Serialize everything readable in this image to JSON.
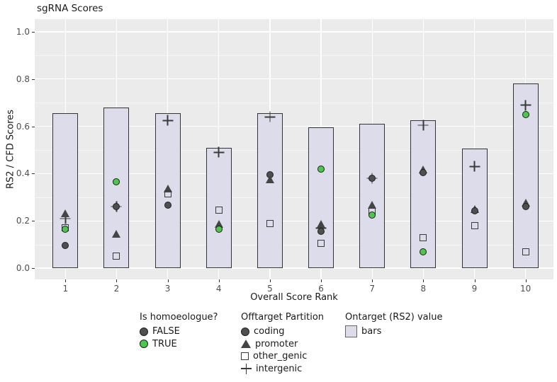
{
  "title": "sgRNA Scores",
  "colors": {
    "background": "#ffffff",
    "panel_background": "#ebebeb",
    "grid_major": "#ffffff",
    "bar_fill": "#dcdceb",
    "bar_border": "#333333",
    "false_color": "#4f4f4f",
    "true_color": "#4bc74b",
    "shape_outline": "#3a3a3a",
    "axis_text": "#4d4d4d"
  },
  "chart_data": {
    "type": "bar",
    "title": "sgRNA Scores",
    "xlabel": "Overall Score Rank",
    "ylabel": "RS2 / CFD Scores",
    "ylim": [
      0,
      1.05
    ],
    "grid": "on",
    "legend_position": "bottom",
    "yticks": [
      0.0,
      0.2,
      0.4,
      0.6,
      0.8,
      1.0
    ],
    "ytick_labels": [
      "0.0",
      "0.2",
      "0.4",
      "0.6",
      "0.8",
      "1.0"
    ],
    "y_minor": [
      0.1,
      0.3,
      0.5,
      0.7,
      0.9
    ],
    "categories": [
      "1",
      "2",
      "3",
      "4",
      "5",
      "6",
      "7",
      "8",
      "9",
      "10"
    ],
    "bars": {
      "name": "Ontarget (RS2) value",
      "label": "bars",
      "values": [
        0.655,
        0.68,
        0.655,
        0.51,
        0.655,
        0.595,
        0.61,
        0.625,
        0.505,
        0.78
      ]
    },
    "points": [
      {
        "rank": 1,
        "partition": "intergenic",
        "shape": "plus",
        "homoeologue": "FALSE",
        "value": 0.21
      },
      {
        "rank": 1,
        "partition": "promoter",
        "shape": "triangle",
        "homoeologue": "FALSE",
        "value": 0.23
      },
      {
        "rank": 1,
        "partition": "other_genic",
        "shape": "square",
        "homoeologue": "FALSE",
        "value": 0.17
      },
      {
        "rank": 1,
        "partition": "coding",
        "shape": "circle",
        "homoeologue": "TRUE",
        "value": 0.165
      },
      {
        "rank": 1,
        "partition": "coding",
        "shape": "circle",
        "homoeologue": "FALSE",
        "value": 0.095
      },
      {
        "rank": 2,
        "partition": "coding",
        "shape": "circle",
        "homoeologue": "TRUE",
        "value": 0.365
      },
      {
        "rank": 2,
        "partition": "intergenic",
        "shape": "plus",
        "homoeologue": "FALSE",
        "value": 0.26
      },
      {
        "rank": 2,
        "partition": "coding",
        "shape": "circle",
        "homoeologue": "FALSE",
        "value": 0.26
      },
      {
        "rank": 2,
        "partition": "promoter",
        "shape": "triangle",
        "homoeologue": "FALSE",
        "value": 0.145
      },
      {
        "rank": 2,
        "partition": "other_genic",
        "shape": "square",
        "homoeologue": "FALSE",
        "value": 0.05
      },
      {
        "rank": 3,
        "partition": "intergenic",
        "shape": "plus",
        "homoeologue": "FALSE",
        "value": 0.625
      },
      {
        "rank": 3,
        "partition": "promoter",
        "shape": "triangle",
        "homoeologue": "FALSE",
        "value": 0.335
      },
      {
        "rank": 3,
        "partition": "other_genic",
        "shape": "square",
        "homoeologue": "FALSE",
        "value": 0.315
      },
      {
        "rank": 3,
        "partition": "coding",
        "shape": "circle",
        "homoeologue": "FALSE",
        "value": 0.265
      },
      {
        "rank": 4,
        "partition": "intergenic",
        "shape": "plus",
        "homoeologue": "FALSE",
        "value": 0.49
      },
      {
        "rank": 4,
        "partition": "other_genic",
        "shape": "square",
        "homoeologue": "FALSE",
        "value": 0.245
      },
      {
        "rank": 4,
        "partition": "promoter",
        "shape": "triangle",
        "homoeologue": "FALSE",
        "value": 0.185
      },
      {
        "rank": 4,
        "partition": "coding",
        "shape": "circle",
        "homoeologue": "TRUE",
        "value": 0.165
      },
      {
        "rank": 5,
        "partition": "intergenic",
        "shape": "plus",
        "homoeologue": "FALSE",
        "value": 0.64
      },
      {
        "rank": 5,
        "partition": "coding",
        "shape": "circle",
        "homoeologue": "FALSE",
        "value": 0.395
      },
      {
        "rank": 5,
        "partition": "promoter",
        "shape": "triangle",
        "homoeologue": "FALSE",
        "value": 0.375
      },
      {
        "rank": 5,
        "partition": "other_genic",
        "shape": "square",
        "homoeologue": "FALSE",
        "value": 0.19
      },
      {
        "rank": 6,
        "partition": "coding",
        "shape": "circle",
        "homoeologue": "TRUE",
        "value": 0.42
      },
      {
        "rank": 6,
        "partition": "promoter",
        "shape": "triangle",
        "homoeologue": "FALSE",
        "value": 0.185
      },
      {
        "rank": 6,
        "partition": "intergenic",
        "shape": "plus",
        "homoeologue": "FALSE",
        "value": 0.17
      },
      {
        "rank": 6,
        "partition": "coding",
        "shape": "circle",
        "homoeologue": "FALSE",
        "value": 0.155
      },
      {
        "rank": 6,
        "partition": "other_genic",
        "shape": "square",
        "homoeologue": "FALSE",
        "value": 0.105
      },
      {
        "rank": 7,
        "partition": "intergenic",
        "shape": "plus",
        "homoeologue": "FALSE",
        "value": 0.38
      },
      {
        "rank": 7,
        "partition": "coding",
        "shape": "circle",
        "homoeologue": "FALSE",
        "value": 0.38
      },
      {
        "rank": 7,
        "partition": "promoter",
        "shape": "triangle",
        "homoeologue": "FALSE",
        "value": 0.265
      },
      {
        "rank": 7,
        "partition": "other_genic",
        "shape": "square",
        "homoeologue": "FALSE",
        "value": 0.24
      },
      {
        "rank": 7,
        "partition": "coding",
        "shape": "circle",
        "homoeologue": "TRUE",
        "value": 0.225
      },
      {
        "rank": 8,
        "partition": "intergenic",
        "shape": "plus",
        "homoeologue": "FALSE",
        "value": 0.605
      },
      {
        "rank": 8,
        "partition": "promoter",
        "shape": "triangle",
        "homoeologue": "FALSE",
        "value": 0.415
      },
      {
        "rank": 8,
        "partition": "coding",
        "shape": "circle",
        "homoeologue": "FALSE",
        "value": 0.405
      },
      {
        "rank": 8,
        "partition": "other_genic",
        "shape": "square",
        "homoeologue": "FALSE",
        "value": 0.13
      },
      {
        "rank": 8,
        "partition": "coding",
        "shape": "circle",
        "homoeologue": "TRUE",
        "value": 0.07
      },
      {
        "rank": 9,
        "partition": "intergenic",
        "shape": "plus",
        "homoeologue": "FALSE",
        "value": 0.43
      },
      {
        "rank": 9,
        "partition": "promoter",
        "shape": "triangle",
        "homoeologue": "FALSE",
        "value": 0.25
      },
      {
        "rank": 9,
        "partition": "coding",
        "shape": "circle",
        "homoeologue": "FALSE",
        "value": 0.243
      },
      {
        "rank": 9,
        "partition": "other_genic",
        "shape": "square",
        "homoeologue": "FALSE",
        "value": 0.18
      },
      {
        "rank": 10,
        "partition": "intergenic",
        "shape": "plus",
        "homoeologue": "FALSE",
        "value": 0.69
      },
      {
        "rank": 10,
        "partition": "coding",
        "shape": "circle",
        "homoeologue": "TRUE",
        "value": 0.65
      },
      {
        "rank": 10,
        "partition": "promoter",
        "shape": "triangle",
        "homoeologue": "FALSE",
        "value": 0.275
      },
      {
        "rank": 10,
        "partition": "coding",
        "shape": "circle",
        "homoeologue": "FALSE",
        "value": 0.26
      },
      {
        "rank": 10,
        "partition": "other_genic",
        "shape": "square",
        "homoeologue": "FALSE",
        "value": 0.07
      }
    ]
  },
  "legend": {
    "homoeologue": {
      "title": "Is homoeologue?",
      "items": [
        {
          "label": "FALSE"
        },
        {
          "label": "TRUE"
        }
      ]
    },
    "offtarget": {
      "title": "Offtarget Partition",
      "items": [
        {
          "label": "coding",
          "shape": "circle"
        },
        {
          "label": "promoter",
          "shape": "triangle"
        },
        {
          "label": "other_genic",
          "shape": "square"
        },
        {
          "label": "intergenic",
          "shape": "plus"
        }
      ]
    },
    "ontarget": {
      "title": "Ontarget (RS2) value",
      "items": [
        {
          "label": "bars"
        }
      ]
    }
  }
}
